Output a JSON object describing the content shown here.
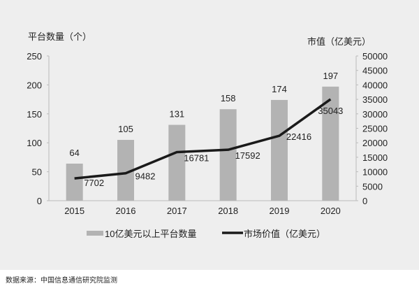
{
  "chart_data": {
    "type": "bar+line",
    "categories": [
      "2015",
      "2016",
      "2017",
      "2018",
      "2019",
      "2020"
    ],
    "series": [
      {
        "name": "10亿美元以上平台数量",
        "type": "bar",
        "axis": "left",
        "color": "#b3b3b3",
        "values": [
          64,
          105,
          131,
          158,
          174,
          197
        ]
      },
      {
        "name": "市场价值（亿美元）",
        "type": "line",
        "axis": "right",
        "color": "#1a1a1a",
        "values": [
          7702,
          9482,
          16781,
          17592,
          22416,
          35043
        ]
      }
    ],
    "left_axis": {
      "label": "平台数量（个）",
      "range": [
        0,
        250
      ],
      "ticks": [
        0,
        50,
        100,
        150,
        200,
        250
      ]
    },
    "right_axis": {
      "label": "市值（亿美元）",
      "range": [
        0,
        50000
      ],
      "ticks": [
        0,
        5000,
        10000,
        15000,
        20000,
        25000,
        30000,
        35000,
        40000,
        45000,
        50000
      ]
    },
    "grid": false,
    "legend": "bottom"
  },
  "source": "数据来源：中国信息通信研究院监测"
}
